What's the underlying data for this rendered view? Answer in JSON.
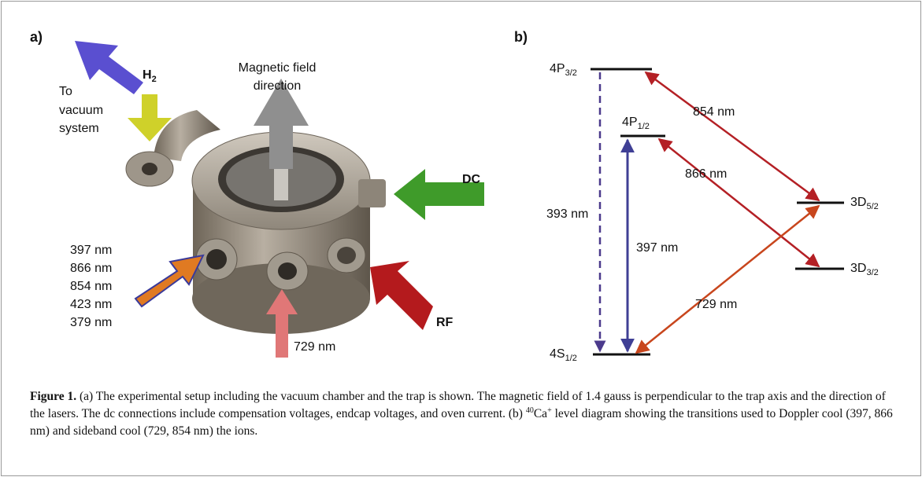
{
  "panel_a": {
    "label": "a)",
    "vacuum_label": [
      "To",
      "vacuum",
      "system"
    ],
    "h2": {
      "base": "H",
      "sub": "2"
    },
    "field_label": [
      "Magnetic field",
      "direction"
    ],
    "dc": "DC",
    "rf": "RF",
    "laser_lines": [
      "397 nm",
      "866 nm",
      "854 nm",
      "423 nm",
      "379 nm"
    ],
    "beam_729": "729 nm"
  },
  "panel_b": {
    "label": "b)",
    "levels": [
      {
        "base": "4P",
        "sub": "3/2"
      },
      {
        "base": "4P",
        "sub": "1/2"
      },
      {
        "base": "3D",
        "sub": "5/2"
      },
      {
        "base": "3D",
        "sub": "3/2"
      },
      {
        "base": "4S",
        "sub": "1/2"
      }
    ],
    "transitions": [
      "854 nm",
      "866 nm",
      "393 nm",
      "397 nm",
      "729 nm"
    ]
  },
  "caption": {
    "label": "Figure 1.",
    "text_before": " (a) The experimental setup including the vacuum chamber and the trap is shown. The magnetic field of 1.4 gauss is perpendicular to the trap axis and the direction of the lasers. The dc connections include compensation voltages, endcap voltages, and oven current. (b) ",
    "isotope": "40",
    "element": "Ca",
    "charge": "+",
    "text_after": " level diagram showing the transitions used to Doppler cool (397, 866 nm) and sideband cool (729, 854 nm) the ions."
  }
}
